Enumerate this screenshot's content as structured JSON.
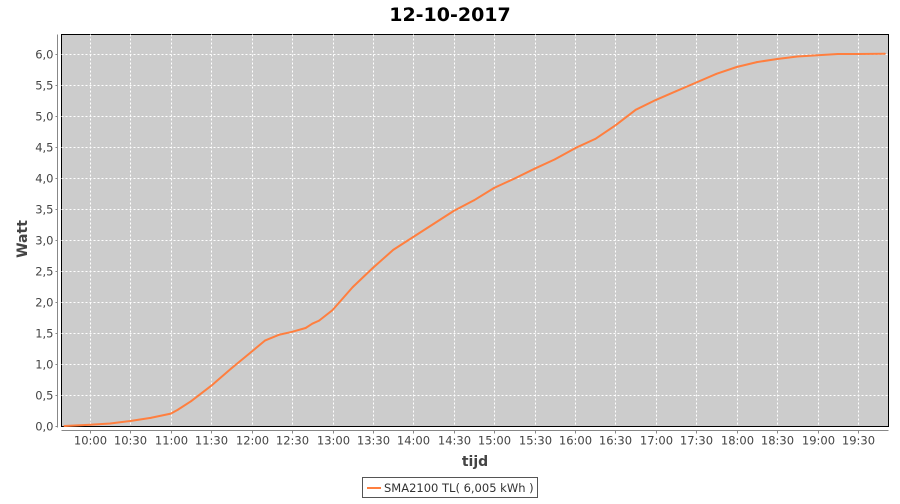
{
  "chart_data": {
    "type": "line",
    "title": "12-10-2017",
    "xlabel": "tijd",
    "ylabel": "Watt",
    "ylim": [
      0,
      6.0
    ],
    "yticks": [
      "0,0",
      "0,5",
      "1,0",
      "1,5",
      "2,0",
      "2,5",
      "3,0",
      "3,5",
      "4,0",
      "4,5",
      "5,0",
      "5,5",
      "6,0"
    ],
    "xlim": [
      "09:35",
      "19:55"
    ],
    "xticks": [
      "10:00",
      "10:30",
      "11:00",
      "11:30",
      "12:00",
      "12:30",
      "13:00",
      "13:30",
      "14:00",
      "14:30",
      "15:00",
      "15:30",
      "16:00",
      "16:30",
      "17:00",
      "17:30",
      "18:00",
      "18:30",
      "19:00",
      "19:30"
    ],
    "grid": true,
    "legend_placement": "bottom",
    "background_color": "#cccccc",
    "series": [
      {
        "name": "SMA2100 TL( 6,005 kWh )",
        "color": "#ff7f3f",
        "x": [
          "09:41",
          "10:00",
          "10:15",
          "10:30",
          "10:45",
          "11:00",
          "11:05",
          "11:15",
          "11:30",
          "11:45",
          "12:00",
          "12:10",
          "12:20",
          "12:30",
          "12:40",
          "12:45",
          "12:50",
          "13:00",
          "13:15",
          "13:30",
          "13:45",
          "14:00",
          "14:15",
          "14:30",
          "14:45",
          "15:00",
          "15:15",
          "15:30",
          "15:45",
          "16:00",
          "16:15",
          "16:30",
          "16:45",
          "17:00",
          "17:15",
          "17:30",
          "17:45",
          "18:00",
          "18:15",
          "18:30",
          "18:45",
          "19:00",
          "19:15",
          "19:30",
          "19:50"
        ],
        "y": [
          0.0,
          0.02,
          0.04,
          0.08,
          0.13,
          0.2,
          0.26,
          0.4,
          0.65,
          0.93,
          1.2,
          1.38,
          1.47,
          1.52,
          1.58,
          1.65,
          1.7,
          1.87,
          2.24,
          2.55,
          2.84,
          3.05,
          3.26,
          3.47,
          3.64,
          3.84,
          3.99,
          4.15,
          4.3,
          4.48,
          4.63,
          4.85,
          5.1,
          5.26,
          5.4,
          5.54,
          5.68,
          5.79,
          5.87,
          5.92,
          5.96,
          5.98,
          6.0,
          6.0,
          6.005
        ]
      }
    ]
  }
}
